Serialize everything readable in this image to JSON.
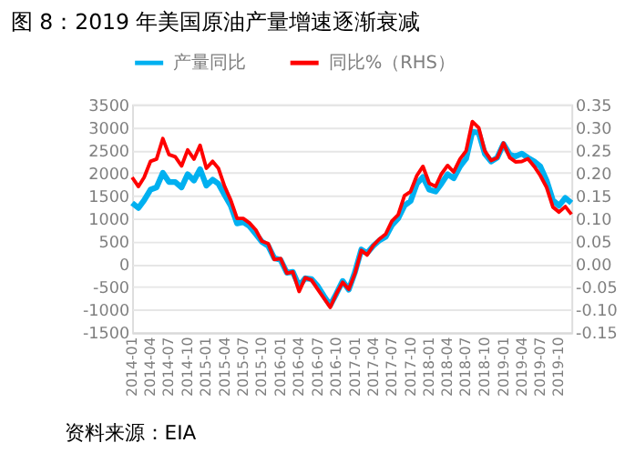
{
  "chart_data": {
    "type": "line",
    "title": "图 8：2019 年美国原油产量增速逐渐衰减",
    "x": [
      "2014-01",
      "2014-02",
      "2014-03",
      "2014-04",
      "2014-05",
      "2014-06",
      "2014-07",
      "2014-08",
      "2014-09",
      "2014-10",
      "2014-11",
      "2014-12",
      "2015-01",
      "2015-02",
      "2015-03",
      "2015-04",
      "2015-05",
      "2015-06",
      "2015-07",
      "2015-08",
      "2015-09",
      "2015-10",
      "2015-11",
      "2015-12",
      "2016-01",
      "2016-02",
      "2016-03",
      "2016-04",
      "2016-05",
      "2016-06",
      "2016-07",
      "2016-08",
      "2016-09",
      "2016-10",
      "2016-11",
      "2016-12",
      "2017-01",
      "2017-02",
      "2017-03",
      "2017-04",
      "2017-05",
      "2017-06",
      "2017-07",
      "2017-08",
      "2017-09",
      "2017-10",
      "2017-11",
      "2017-12",
      "2018-01",
      "2018-02",
      "2018-03",
      "2018-04",
      "2018-05",
      "2018-06",
      "2018-07",
      "2018-08",
      "2018-09",
      "2018-10",
      "2018-11",
      "2018-12",
      "2019-01",
      "2019-02",
      "2019-03",
      "2019-04",
      "2019-05",
      "2019-06",
      "2019-07",
      "2019-08",
      "2019-09",
      "2019-10",
      "2019-11",
      "2019-12"
    ],
    "series": [
      {
        "name": "产量同比",
        "color": "#00b0f0",
        "values": [
          1340,
          1230,
          1400,
          1630,
          1680,
          2000,
          1800,
          1800,
          1680,
          1970,
          1830,
          2080,
          1720,
          1850,
          1760,
          1510,
          1280,
          890,
          920,
          830,
          660,
          490,
          400,
          130,
          90,
          -190,
          -170,
          -480,
          -310,
          -330,
          -480,
          -700,
          -900,
          -650,
          -370,
          -560,
          -170,
          320,
          240,
          400,
          520,
          600,
          850,
          1000,
          1280,
          1380,
          1760,
          1910,
          1630,
          1590,
          1760,
          1970,
          1880,
          2140,
          2310,
          2900,
          2880,
          2420,
          2250,
          2330,
          2630,
          2400,
          2360,
          2420,
          2330,
          2250,
          2140,
          1830,
          1400,
          1280,
          1450,
          1340
        ]
      },
      {
        "name": "同比%（RHS）",
        "color": "#ff0000",
        "axis": "y2",
        "values": [
          0.19,
          0.17,
          0.19,
          0.225,
          0.23,
          0.275,
          0.24,
          0.235,
          0.215,
          0.25,
          0.23,
          0.26,
          0.21,
          0.225,
          0.21,
          0.17,
          0.14,
          0.1,
          0.1,
          0.09,
          0.075,
          0.05,
          0.045,
          0.01,
          0.012,
          -0.02,
          -0.017,
          -0.06,
          -0.03,
          -0.035,
          -0.055,
          -0.075,
          -0.095,
          -0.065,
          -0.04,
          -0.055,
          -0.02,
          0.03,
          0.02,
          0.041,
          0.055,
          0.066,
          0.094,
          0.108,
          0.15,
          0.159,
          0.194,
          0.214,
          0.177,
          0.17,
          0.197,
          0.216,
          0.202,
          0.23,
          0.248,
          0.312,
          0.299,
          0.248,
          0.227,
          0.233,
          0.265,
          0.233,
          0.224,
          0.225,
          0.231,
          0.214,
          0.194,
          0.168,
          0.125,
          0.114,
          0.126,
          0.109
        ]
      }
    ],
    "xlim": [
      "2014-01",
      "2019-12"
    ],
    "xticks": [
      "2014-01",
      "2014-04",
      "2014-07",
      "2014-10",
      "2015-01",
      "2015-04",
      "2015-07",
      "2015-10",
      "2016-01",
      "2016-04",
      "2016-07",
      "2016-10",
      "2017-01",
      "2017-04",
      "2017-07",
      "2017-10",
      "2018-01",
      "2018-04",
      "2018-07",
      "2018-10",
      "2019-01",
      "2019-04",
      "2019-07",
      "2019-10"
    ],
    "ylim": [
      -1500,
      3500
    ],
    "yticks": [
      -1500,
      -1000,
      -500,
      0,
      500,
      1000,
      1500,
      2000,
      2500,
      3000,
      3500
    ],
    "y2lim": [
      -0.15,
      0.35
    ],
    "y2ticks": [
      {
        "value": -0.15,
        "label": "-0.15"
      },
      {
        "value": -0.1,
        "label": "-0.10"
      },
      {
        "value": -0.05,
        "label": "-0.05"
      },
      {
        "value": 0,
        "label": "0.00"
      },
      {
        "value": 0.05,
        "label": "0.05"
      },
      {
        "value": 0.1,
        "label": "0.10"
      },
      {
        "value": 0.15,
        "label": "0.15"
      },
      {
        "value": 0.2,
        "label": "0.20"
      },
      {
        "value": 0.25,
        "label": "0.25"
      },
      {
        "value": 0.3,
        "label": "0.30"
      },
      {
        "value": 0.35,
        "label": "0.35"
      }
    ],
    "grid": "y",
    "legend": "top",
    "marker": "none",
    "line_style": "solid",
    "annotations": [
      "资料来源：EIA"
    ]
  }
}
